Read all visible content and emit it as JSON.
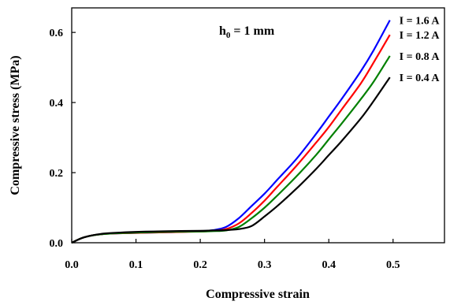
{
  "chart_data": {
    "type": "line",
    "title": "",
    "xlabel": "Compressive strain",
    "ylabel": "Compressive stress (MPa)",
    "annotation": {
      "base": "h",
      "sub": "0",
      "rest": " = 1 mm"
    },
    "xlim": [
      0,
      0.58
    ],
    "ylim": [
      0,
      0.67
    ],
    "x_ticks": [
      0.0,
      0.1,
      0.2,
      0.3,
      0.4,
      0.5
    ],
    "x_tick_labels": [
      "0.0",
      "0.1",
      "0.2",
      "0.3",
      "0.4",
      "0.5"
    ],
    "y_ticks": [
      0.0,
      0.2,
      0.4,
      0.6
    ],
    "y_tick_labels": [
      "0.0",
      "0.2",
      "0.4",
      "0.6"
    ],
    "grid": false,
    "legend": "right end of each curve",
    "series": [
      {
        "name": "I = 1.6 A",
        "color": "#0000ff",
        "x": [
          0,
          0.02,
          0.05,
          0.1,
          0.15,
          0.2,
          0.22,
          0.24,
          0.26,
          0.28,
          0.3,
          0.32,
          0.35,
          0.38,
          0.4,
          0.42,
          0.45,
          0.47,
          0.495
        ],
        "y": [
          0,
          0.016,
          0.025,
          0.028,
          0.03,
          0.033,
          0.036,
          0.045,
          0.07,
          0.105,
          0.14,
          0.18,
          0.24,
          0.31,
          0.36,
          0.41,
          0.49,
          0.55,
          0.635
        ]
      },
      {
        "name": "I = 1.2 A",
        "color": "#ff0000",
        "x": [
          0,
          0.02,
          0.05,
          0.1,
          0.15,
          0.2,
          0.22,
          0.24,
          0.26,
          0.28,
          0.3,
          0.32,
          0.35,
          0.38,
          0.4,
          0.42,
          0.45,
          0.47,
          0.495
        ],
        "y": [
          0,
          0.016,
          0.025,
          0.028,
          0.03,
          0.032,
          0.034,
          0.039,
          0.055,
          0.085,
          0.12,
          0.16,
          0.22,
          0.285,
          0.33,
          0.38,
          0.455,
          0.515,
          0.593
        ]
      },
      {
        "name": "I = 0.8 A",
        "color": "#008000",
        "x": [
          0,
          0.02,
          0.05,
          0.1,
          0.15,
          0.2,
          0.22,
          0.24,
          0.26,
          0.28,
          0.3,
          0.32,
          0.35,
          0.38,
          0.4,
          0.42,
          0.45,
          0.47,
          0.495
        ],
        "y": [
          0,
          0.016,
          0.025,
          0.029,
          0.031,
          0.032,
          0.033,
          0.035,
          0.045,
          0.07,
          0.1,
          0.135,
          0.19,
          0.25,
          0.295,
          0.34,
          0.41,
          0.46,
          0.533
        ]
      },
      {
        "name": "I = 0.4 A",
        "color": "#000000",
        "x": [
          0,
          0.02,
          0.05,
          0.1,
          0.15,
          0.2,
          0.22,
          0.24,
          0.26,
          0.28,
          0.3,
          0.32,
          0.35,
          0.38,
          0.4,
          0.42,
          0.45,
          0.47,
          0.495
        ],
        "y": [
          0,
          0.016,
          0.026,
          0.031,
          0.033,
          0.034,
          0.035,
          0.036,
          0.039,
          0.048,
          0.075,
          0.105,
          0.155,
          0.21,
          0.25,
          0.29,
          0.355,
          0.405,
          0.472
        ]
      }
    ]
  }
}
